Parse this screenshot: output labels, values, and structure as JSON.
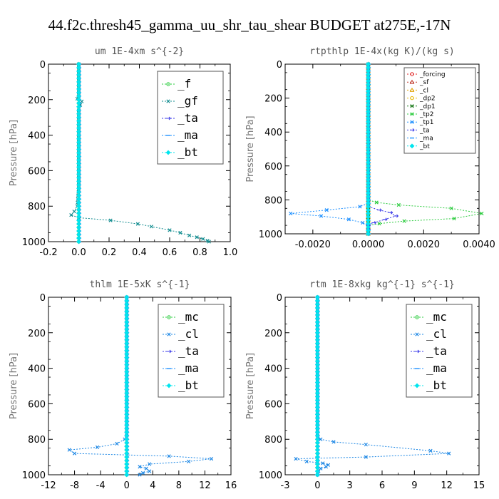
{
  "figure": {
    "suptitle": "44.f2c.thresh45_gamma_uu_shr_tau_shear  BUDGET at275E,-17N"
  },
  "chart_data": [
    {
      "type": "line",
      "title": "um  1E-4xm s^{-2}",
      "ylabel": "Pressure [hPa]",
      "xlim": [
        -0.2,
        1.0
      ],
      "ylim": [
        1000,
        0
      ],
      "xticks": [
        -0.2,
        0.0,
        0.2,
        0.4,
        0.6,
        0.8,
        1.0
      ],
      "xtick_labels": [
        "-0.2",
        "0.0",
        "0.2",
        "0.4",
        "0.6",
        "0.8",
        "1.0"
      ],
      "yticks": [
        0,
        200,
        400,
        600,
        800,
        1000
      ],
      "ytick_labels": [
        "0",
        "200",
        "400",
        "600",
        "800",
        "1000"
      ],
      "legend_style": "big",
      "legend_box": "top-right",
      "series": [
        {
          "name": "_f",
          "color": "#2ecc40",
          "marker": "circle",
          "points": [
            [
              0.0,
              0
            ],
            [
              0.0,
              1000
            ]
          ]
        },
        {
          "name": "_gf",
          "color": "#138d90",
          "marker": "x",
          "points": [
            [
              0.0,
              0
            ],
            [
              0.0,
              180
            ],
            [
              -0.01,
              195
            ],
            [
              0.02,
              210
            ],
            [
              0.01,
              230
            ],
            [
              0.0,
              260
            ],
            [
              0.0,
              700
            ],
            [
              -0.01,
              800
            ],
            [
              -0.03,
              830
            ],
            [
              -0.05,
              850
            ],
            [
              0.0,
              865
            ],
            [
              0.21,
              880
            ],
            [
              0.39,
              900
            ],
            [
              0.48,
              915
            ],
            [
              0.6,
              935
            ],
            [
              0.67,
              950
            ],
            [
              0.73,
              965
            ],
            [
              0.78,
              975
            ],
            [
              0.82,
              985
            ],
            [
              0.85,
              995
            ],
            [
              0.86,
              1000
            ]
          ]
        },
        {
          "name": "_ta",
          "color": "#3a3ae8",
          "marker": "arrow",
          "points": [
            [
              0.0,
              0
            ],
            [
              0.0,
              1000
            ]
          ]
        },
        {
          "name": "_ma",
          "color": "#1e90ff",
          "marker": "dash",
          "points": [
            [
              0.0,
              0
            ],
            [
              0.0,
              1000
            ]
          ]
        },
        {
          "name": "_bt",
          "color": "#00e5ee",
          "marker": "diamond",
          "points": [
            [
              0.0,
              0
            ],
            [
              0.0,
              1000
            ]
          ]
        }
      ]
    },
    {
      "type": "line",
      "title": "rtpthlp  1E-4x(kg K)/(kg s)",
      "ylabel": "Pressure [hPa]",
      "xlim": [
        -0.003,
        0.004
      ],
      "ylim": [
        1000,
        0
      ],
      "xticks": [
        -0.002,
        0.0,
        0.002,
        0.004
      ],
      "xtick_labels": [
        "-0.0020",
        "0.0000",
        "0.0020",
        "0.0040"
      ],
      "yticks": [
        0,
        200,
        400,
        600,
        800,
        1000
      ],
      "ytick_labels": [
        "0",
        "200",
        "400",
        "600",
        "800",
        "1000"
      ],
      "legend_style": "small",
      "legend_box": "top-right",
      "series": [
        {
          "name": "_forcing",
          "color": "#e02020",
          "marker": "circle",
          "points": [
            [
              0.0,
              0
            ],
            [
              0.0,
              1000
            ]
          ]
        },
        {
          "name": "_sf",
          "color": "#c0392b",
          "marker": "triangle",
          "points": [
            [
              0.0,
              0
            ],
            [
              0.0,
              1000
            ]
          ]
        },
        {
          "name": "_cl",
          "color": "#e0a000",
          "marker": "triangle",
          "points": [
            [
              0.0,
              0
            ],
            [
              0.0,
              1000
            ]
          ]
        },
        {
          "name": "_dp2",
          "color": "#e8b800",
          "marker": "circle",
          "points": [
            [
              0.0,
              0
            ],
            [
              0.0,
              1000
            ]
          ]
        },
        {
          "name": "_dp1",
          "color": "#1a7a1a",
          "marker": "x",
          "points": [
            [
              0.0,
              0
            ],
            [
              0.0,
              1000
            ]
          ]
        },
        {
          "name": "_tp2",
          "color": "#2ecc40",
          "marker": "x",
          "points": [
            [
              0.0,
              0
            ],
            [
              0.0,
              800
            ],
            [
              0.0003,
              815
            ],
            [
              0.0011,
              830
            ],
            [
              0.003,
              850
            ],
            [
              0.0041,
              880
            ],
            [
              0.0031,
              910
            ],
            [
              0.0013,
              925
            ],
            [
              0.0004,
              940
            ],
            [
              0.0,
              950
            ],
            [
              0.0,
              1000
            ]
          ]
        },
        {
          "name": "_tp1",
          "color": "#1e90ff",
          "marker": "x",
          "points": [
            [
              0.0,
              0
            ],
            [
              0.0,
              820
            ],
            [
              -0.0003,
              840
            ],
            [
              -0.0015,
              860
            ],
            [
              -0.0028,
              880
            ],
            [
              -0.0017,
              895
            ],
            [
              -0.0007,
              915
            ],
            [
              -0.0002,
              935
            ],
            [
              0.0,
              950
            ],
            [
              0.0,
              1000
            ]
          ]
        },
        {
          "name": "_ta",
          "color": "#3a3ae8",
          "marker": "arrow",
          "points": [
            [
              0.0,
              0
            ],
            [
              0.0,
              840
            ],
            [
              0.0004,
              860
            ],
            [
              0.0008,
              875
            ],
            [
              0.001,
              895
            ],
            [
              0.0006,
              915
            ],
            [
              0.0002,
              935
            ],
            [
              0.0,
              950
            ],
            [
              0.0,
              1000
            ]
          ]
        },
        {
          "name": "_ma",
          "color": "#1e90ff",
          "marker": "dash",
          "points": [
            [
              0.0,
              0
            ],
            [
              0.0,
              1000
            ]
          ]
        },
        {
          "name": "_bt",
          "color": "#00e5ee",
          "marker": "diamond",
          "points": [
            [
              0.0,
              0
            ],
            [
              0.0,
              1000
            ]
          ]
        }
      ]
    },
    {
      "type": "line",
      "title": "thlm  1E-5xK s^{-1}",
      "ylabel": "Pressure [hPa]",
      "xlim": [
        -12,
        16
      ],
      "ylim": [
        1000,
        0
      ],
      "xticks": [
        -12,
        -8,
        -4,
        0,
        4,
        8,
        12,
        16
      ],
      "xtick_labels": [
        "-12",
        "-8",
        "-4",
        "0",
        "4",
        "8",
        "12",
        "16"
      ],
      "yticks": [
        0,
        200,
        400,
        600,
        800,
        1000
      ],
      "ytick_labels": [
        "0",
        "200",
        "400",
        "600",
        "800",
        "1000"
      ],
      "legend_style": "big",
      "legend_box": "top-right",
      "series": [
        {
          "name": "_mc",
          "color": "#2ecc40",
          "marker": "circle",
          "points": [
            [
              0,
              0
            ],
            [
              0,
              1000
            ]
          ]
        },
        {
          "name": "_cl",
          "color": "#1e88e5",
          "marker": "x",
          "points": [
            [
              0,
              0
            ],
            [
              0,
              780
            ],
            [
              -0.3,
              800
            ],
            [
              -1.5,
              825
            ],
            [
              -4.5,
              845
            ],
            [
              -8.8,
              860
            ],
            [
              -8,
              880
            ],
            [
              6.5,
              895
            ],
            [
              13,
              910
            ],
            [
              9.5,
              925
            ],
            [
              3.5,
              940
            ],
            [
              2,
              955
            ],
            [
              3,
              965
            ],
            [
              3.5,
              980
            ],
            [
              2.5,
              990
            ],
            [
              2,
              1000
            ]
          ]
        },
        {
          "name": "_ta",
          "color": "#3a3ae8",
          "marker": "arrow",
          "points": [
            [
              0,
              0
            ],
            [
              0,
              1000
            ]
          ]
        },
        {
          "name": "_ma",
          "color": "#1e90ff",
          "marker": "dash",
          "points": [
            [
              0,
              0
            ],
            [
              0,
              1000
            ]
          ]
        },
        {
          "name": "_bt",
          "color": "#00e5ee",
          "marker": "diamond",
          "points": [
            [
              0,
              0
            ],
            [
              0,
              1000
            ]
          ]
        }
      ]
    },
    {
      "type": "line",
      "title": "rtm  1E-8xkg kg^{-1} s^{-1}",
      "ylabel": "Pressure [hPa]",
      "xlim": [
        -3,
        15
      ],
      "ylim": [
        1000,
        0
      ],
      "xticks": [
        -3,
        0,
        3,
        6,
        9,
        12,
        15
      ],
      "xtick_labels": [
        "-3",
        "0",
        "3",
        "6",
        "9",
        "12",
        "15"
      ],
      "yticks": [
        0,
        200,
        400,
        600,
        800,
        1000
      ],
      "ytick_labels": [
        "0",
        "200",
        "400",
        "600",
        "800",
        "1000"
      ],
      "legend_style": "big",
      "legend_box": "top-right",
      "series": [
        {
          "name": "_mc",
          "color": "#2ecc40",
          "marker": "circle",
          "points": [
            [
              0,
              0
            ],
            [
              0,
              1000
            ]
          ]
        },
        {
          "name": "_cl",
          "color": "#1e88e5",
          "marker": "x",
          "points": [
            [
              0,
              0
            ],
            [
              0,
              780
            ],
            [
              0.3,
              800
            ],
            [
              1.5,
              815
            ],
            [
              4.5,
              830
            ],
            [
              10.5,
              865
            ],
            [
              12.2,
              880
            ],
            [
              4.5,
              900
            ],
            [
              -2,
              910
            ],
            [
              -1,
              925
            ],
            [
              0.5,
              935
            ],
            [
              1,
              945
            ],
            [
              0.8,
              955
            ],
            [
              0.3,
              965
            ],
            [
              0.1,
              980
            ],
            [
              0,
              1000
            ]
          ]
        },
        {
          "name": "_ta",
          "color": "#3a3ae8",
          "marker": "arrow",
          "points": [
            [
              0,
              0
            ],
            [
              0,
              1000
            ]
          ]
        },
        {
          "name": "_ma",
          "color": "#1e90ff",
          "marker": "dash",
          "points": [
            [
              0,
              0
            ],
            [
              0,
              1000
            ]
          ]
        },
        {
          "name": "_bt",
          "color": "#00e5ee",
          "marker": "diamond",
          "points": [
            [
              0,
              0
            ],
            [
              0,
              1000
            ]
          ]
        }
      ]
    }
  ]
}
